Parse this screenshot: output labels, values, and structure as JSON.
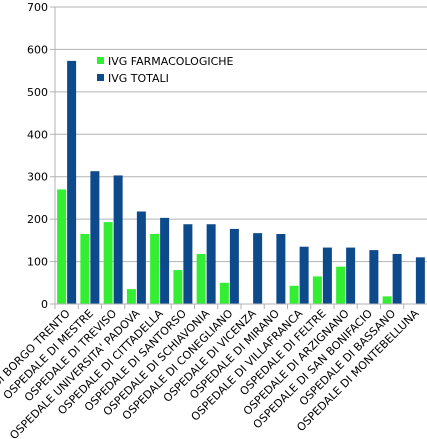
{
  "chart_data": {
    "type": "bar",
    "categories": [
      "OSPEDALE DI BORGO TRENTO",
      "OSPEDALE DI MESTRE",
      "OSPEDALE DI TREVISO",
      "OSPEDALE UNIVERSITA' PADOVA",
      "OSPEDALE DI CITTADELLA",
      "OSPEDALE DI SANTORSO",
      "OSPEDALE DI SCHIAVONIA",
      "OSPEDALE DI CONEGLIANO",
      "OSPEDALE DI VICENZA",
      "OSPEDALE DI MIRANO",
      "OSPEDALE DI VILLAFRANCA",
      "OSPEDALE DI FELTRE",
      "OSPEDALE DI ARZIGNANO",
      "OSPEDALE DI SAN BONIFACIO",
      "OSPEDALE DI BASSANO",
      "OSPEDALE DI MONTEBELLUNA"
    ],
    "series": [
      {
        "name": "IVG FARMACOLOGICHE",
        "color": "#33ee33",
        "values": [
          270,
          165,
          193,
          35,
          165,
          80,
          118,
          50,
          0,
          0,
          43,
          65,
          88,
          0,
          18,
          0
        ]
      },
      {
        "name": "IVG TOTALI",
        "color": "#0d4a8c",
        "values": [
          573,
          313,
          303,
          218,
          203,
          188,
          188,
          177,
          167,
          165,
          135,
          133,
          133,
          127,
          118,
          110
        ]
      }
    ],
    "ylim": [
      0,
      700
    ],
    "yticks": [
      0,
      100,
      200,
      300,
      400,
      500,
      600,
      700
    ],
    "grid": true,
    "legend_position": "top-right"
  }
}
